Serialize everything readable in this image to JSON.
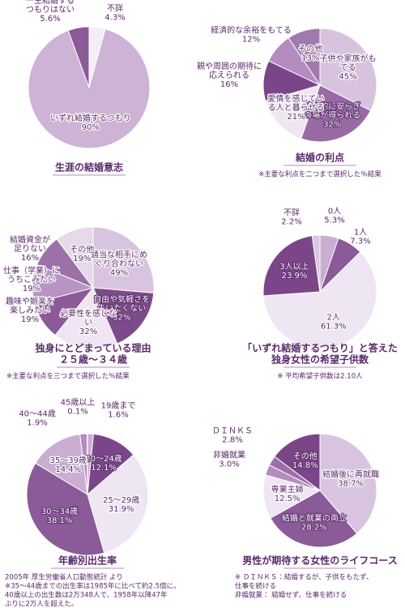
{
  "chart_data": [
    {
      "type": "pie",
      "title": [
        "生涯の結婚意志"
      ],
      "notes": [],
      "categories": [
        "不詳",
        "いずれ結婚するつもり",
        "一生結婚するつもりはない"
      ],
      "values": [
        4.3,
        90,
        5.6
      ],
      "value_labels": [
        "4.3%",
        "90%",
        "5.6%"
      ],
      "colors": [
        "#f3eef6",
        "#cdb3d6",
        "#8b5a98"
      ]
    },
    {
      "type": "pie",
      "title": [
        "結婚の利点"
      ],
      "notes": [
        "※主要な利点を二つまで選択した％結果"
      ],
      "categories": [
        "子供や家族がもてる",
        "精神的に安らぎの場が得られる",
        "愛情を感じている人と暮らせる",
        "親や周囲の期待に応えられる",
        "経済的な余裕をもてる",
        "その他"
      ],
      "values": [
        45,
        32,
        21,
        16,
        12,
        13
      ],
      "value_labels": [
        "45%",
        "32%",
        "21%",
        "16%",
        "12%",
        "13%"
      ],
      "colors": [
        "#d8c3de",
        "#9a6aa6",
        "#efe6f2",
        "#7b4689",
        "#b48cbf",
        "#a07aad"
      ]
    },
    {
      "type": "pie",
      "title": [
        "独身にとどまっている理由",
        "２５歳～３４歳"
      ],
      "notes": [
        "※主要な利点を三つまで選択した％結果"
      ],
      "categories": [
        "適当な相手にめぐり合わない",
        "自由や気軽さを失いたくない",
        "必要性を感じない",
        "趣味や娯楽を楽しみたい",
        "仕事（学業）にうちこみたい",
        "結婚資金が足りない",
        "その他"
      ],
      "values": [
        49,
        32,
        32,
        19,
        19,
        16,
        19
      ],
      "value_labels": [
        "49%",
        "32%",
        "32%",
        "19%",
        "19%",
        "16%",
        "19%"
      ],
      "colors": [
        "#d9c4df",
        "#7d4a8a",
        "#f0e6f3",
        "#8d5a99",
        "#b894c2",
        "#9c70a8",
        "#e6d9ea"
      ]
    },
    {
      "type": "pie",
      "title": [
        "「いずれ結婚するつもり」と答えた",
        "独身女性の希望子供数"
      ],
      "notes": [
        "※ 平均希望子供数は2.10人"
      ],
      "categories": [
        "0人",
        "1人",
        "2人",
        "3人以上",
        "不詳"
      ],
      "values": [
        5.3,
        7.3,
        61.3,
        23.9,
        2.2
      ],
      "value_labels": [
        "5.3%",
        "7.3%",
        "61.3%",
        "23.9%",
        "2.2%"
      ],
      "colors": [
        "#c9aed2",
        "#8b5a98",
        "#efe6f3",
        "#7b4689",
        "#d9c6e0"
      ]
    },
    {
      "type": "pie",
      "title": [
        "年齢別出生率"
      ],
      "notes": [
        "2005年 厚生労働省人口動態統計 より",
        "※35～44歳までの出生率は1985年に比べて約2.5倍に。",
        "40歳以上の出生数は2万348人で、1958年以降47年",
        "ぶりに2万人を超えた。"
      ],
      "categories": [
        "19歳まで",
        "20～24歳",
        "25～29歳",
        "30～34歳",
        "35～39歳",
        "40～44歳",
        "45歳以上"
      ],
      "values": [
        1.6,
        12.1,
        31.9,
        38.1,
        14.4,
        1.9,
        0.1
      ],
      "value_labels": [
        "1.6%",
        "12.1%",
        "31.9%",
        "38.1%",
        "14.4%",
        "1.9%",
        "0.1%"
      ],
      "colors": [
        "#c9aed2",
        "#7b4689",
        "#efe6f3",
        "#8b5a98",
        "#c9aed2",
        "#b48cbf",
        "#6a3a78"
      ]
    },
    {
      "type": "pie",
      "title": [
        "男性が期待する女性のライフコース"
      ],
      "notes": [
        "※ ＤＩＮＫＳ：結婚するが、子供をもたず、",
        "仕事を続ける",
        "非婚就業： 結婚せず、仕事を続ける"
      ],
      "categories": [
        "結婚後に再就職",
        "結婚と就業の両立",
        "専業主婦",
        "非婚就業",
        "ＤＩＮＫＳ",
        "その他"
      ],
      "values": [
        38.7,
        28.2,
        12.5,
        3.0,
        2.8,
        14.8
      ],
      "value_labels": [
        "38.7%",
        "28.2%",
        "12.5%",
        "3.0%",
        "2.8%",
        "14.8%"
      ],
      "colors": [
        "#d9c4df",
        "#8b5a98",
        "#efe6f3",
        "#b48cbf",
        "#9c70a8",
        "#7b4689"
      ]
    }
  ]
}
